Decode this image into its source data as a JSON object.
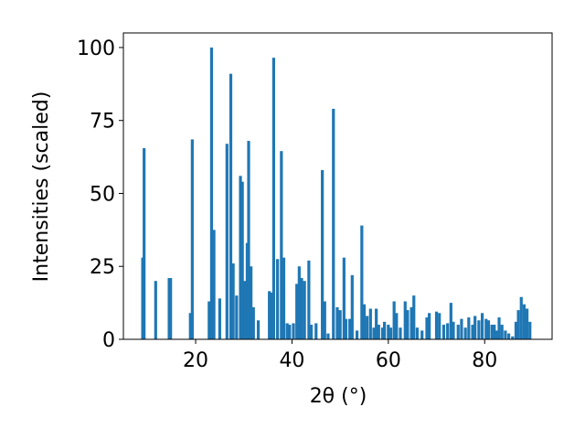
{
  "chart_data": {
    "type": "bar",
    "color": "#1f77b4",
    "grid": false,
    "xlabel": "2θ (°)",
    "ylabel": "Intensities (scaled)",
    "xlim": [
      5,
      94
    ],
    "ylim": [
      0,
      105
    ],
    "xticks": [
      20,
      40,
      60,
      80
    ],
    "yticks": [
      0,
      25,
      50,
      75,
      100
    ],
    "x": [
      9.0,
      9.3,
      11.7,
      14.5,
      14.8,
      18.9,
      19.3,
      22.8,
      23.3,
      23.8,
      25.0,
      26.5,
      27.3,
      27.8,
      28.5,
      29.3,
      29.7,
      30.2,
      30.7,
      31.0,
      31.5,
      32.0,
      33.0,
      35.3,
      35.7,
      36.2,
      37.0,
      37.8,
      38.3,
      39.0,
      39.5,
      40.3,
      41.0,
      41.5,
      42.0,
      42.6,
      43.5,
      44.0,
      45.0,
      46.3,
      46.8,
      47.5,
      48.6,
      49.4,
      50.0,
      50.8,
      51.2,
      52.0,
      52.5,
      53.5,
      54.5,
      55.0,
      55.6,
      56.3,
      57.0,
      57.5,
      58.0,
      58.8,
      59.2,
      60.0,
      60.5,
      61.2,
      61.7,
      62.5,
      63.5,
      64.0,
      64.8,
      65.3,
      66.0,
      67.0,
      68.0,
      68.5,
      70.0,
      70.6,
      71.5,
      72.3,
      73.0,
      73.5,
      74.5,
      75.2,
      76.0,
      76.7,
      77.5,
      78.0,
      78.8,
      79.5,
      80.3,
      80.8,
      81.5,
      82.0,
      82.5,
      83.0,
      83.6,
      84.3,
      85.0,
      85.8,
      86.5,
      87.0,
      87.6,
      88.2,
      88.8,
      89.4
    ],
    "values": [
      28,
      65.5,
      20,
      21,
      21,
      9,
      68.5,
      13,
      100,
      37.5,
      14,
      67,
      91,
      26,
      15,
      56,
      54,
      20,
      33,
      68,
      25,
      11,
      6.5,
      16.5,
      16,
      96.5,
      27.5,
      64.5,
      28,
      5.5,
      5,
      5.5,
      19,
      25,
      21,
      20,
      27,
      5,
      5.5,
      58,
      13,
      2,
      79,
      11,
      10,
      28,
      7,
      7,
      22,
      3,
      39,
      12,
      8,
      10.5,
      4,
      10.5,
      5,
      4,
      6,
      5,
      4,
      13,
      9,
      4,
      13,
      10,
      11,
      15,
      4,
      3,
      7.5,
      9,
      9.5,
      9,
      5,
      5.5,
      12.5,
      6,
      5,
      7,
      4,
      7.5,
      5,
      8,
      6.5,
      9,
      7,
      6.5,
      5,
      5,
      3,
      7.5,
      5,
      3,
      2,
      1,
      6,
      10,
      14.5,
      12,
      10.5,
      6
    ]
  }
}
